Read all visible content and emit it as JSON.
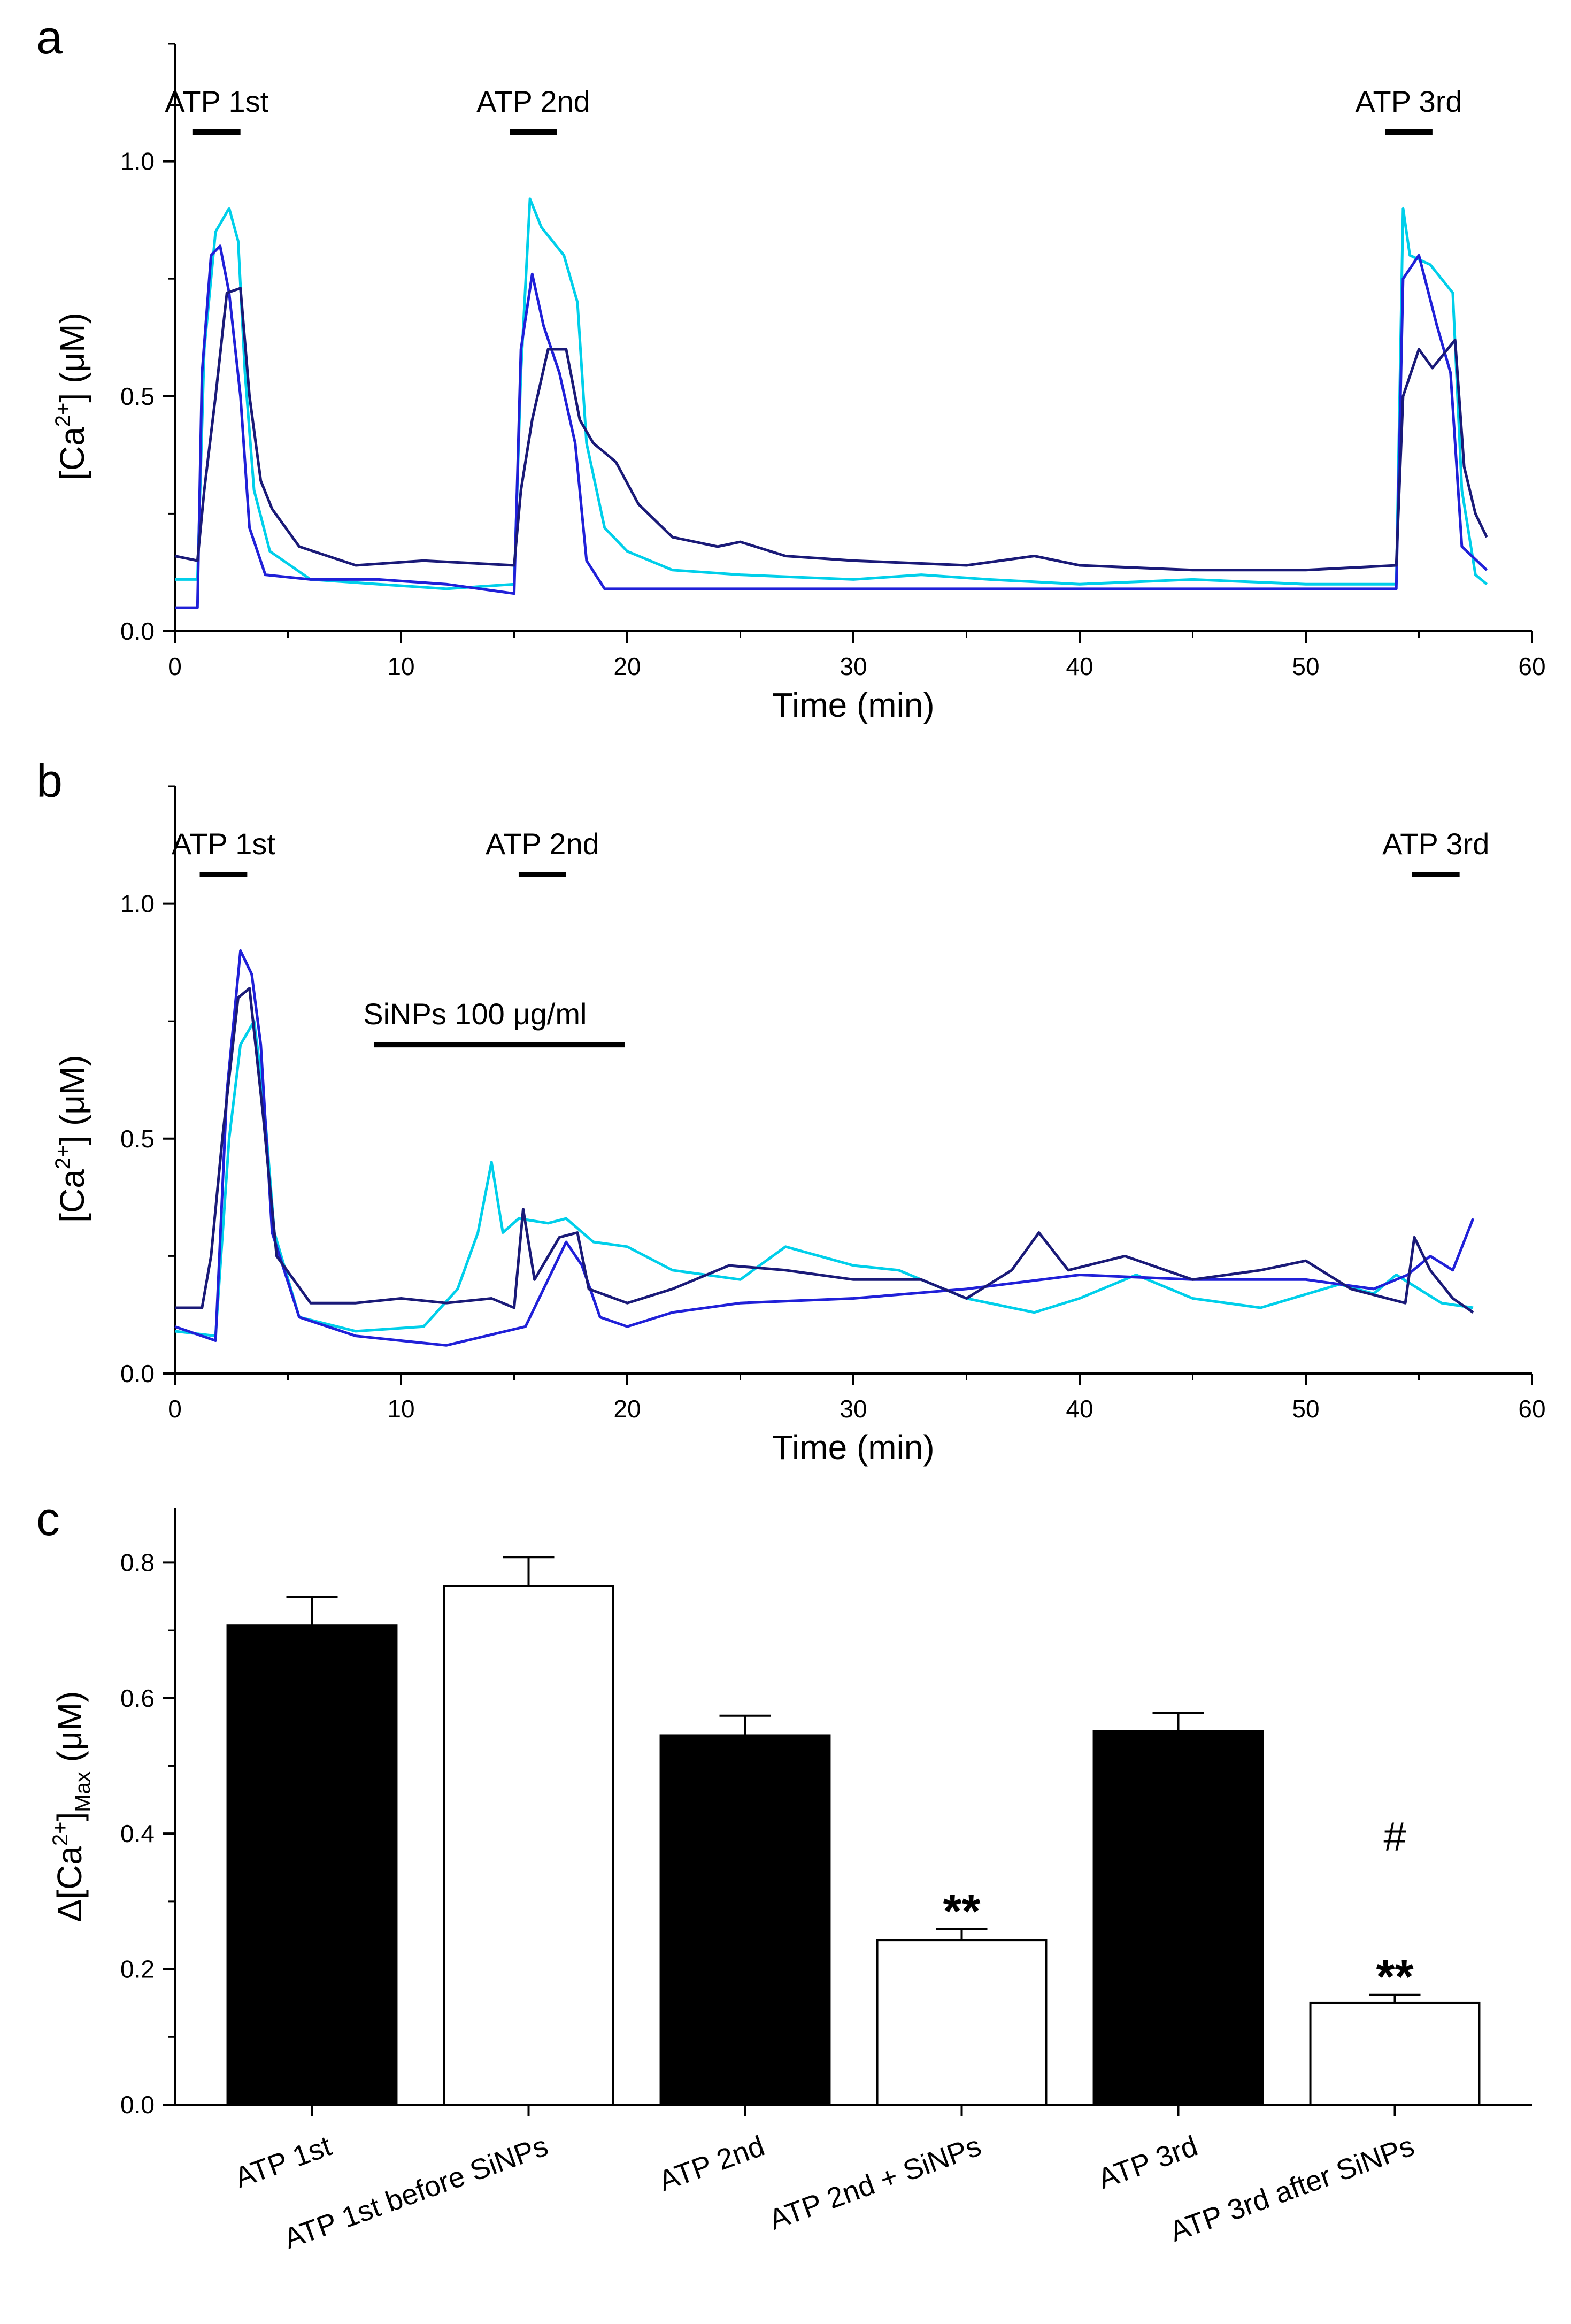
{
  "chart_data": [
    {
      "panel": "a",
      "type": "line",
      "xlabel": "Time (min)",
      "ylabel": {
        "base": "[Ca",
        "sup": "2+",
        "rest": "] (μM)"
      },
      "xlim": [
        0,
        60
      ],
      "ylim": [
        0,
        1.25
      ],
      "xticks": [
        0,
        10,
        20,
        30,
        40,
        50,
        60
      ],
      "yticks": [
        0.0,
        0.5,
        1.0
      ],
      "ytick_labels": [
        "0.0",
        "0.5",
        "1.0"
      ],
      "stim_bars": [
        {
          "label": "ATP 1st",
          "start": 0.8,
          "end": 2.9
        },
        {
          "label": "ATP 2nd",
          "start": 14.8,
          "end": 16.9
        },
        {
          "label": "ATP 3rd",
          "start": 53.5,
          "end": 55.6
        }
      ],
      "series": [
        {
          "color": "#00CFEA",
          "points": [
            [
              0,
              0.11
            ],
            [
              1.0,
              0.11
            ],
            [
              1.3,
              0.6
            ],
            [
              1.8,
              0.85
            ],
            [
              2.4,
              0.9
            ],
            [
              2.8,
              0.83
            ],
            [
              3.1,
              0.55
            ],
            [
              3.5,
              0.3
            ],
            [
              4.2,
              0.17
            ],
            [
              6,
              0.11
            ],
            [
              9,
              0.1
            ],
            [
              12,
              0.09
            ],
            [
              15,
              0.1
            ],
            [
              15.3,
              0.55
            ],
            [
              15.7,
              0.92
            ],
            [
              16.2,
              0.86
            ],
            [
              17.2,
              0.8
            ],
            [
              17.8,
              0.7
            ],
            [
              18.2,
              0.4
            ],
            [
              19,
              0.22
            ],
            [
              20,
              0.17
            ],
            [
              22,
              0.13
            ],
            [
              25,
              0.12
            ],
            [
              30,
              0.11
            ],
            [
              33,
              0.12
            ],
            [
              36,
              0.11
            ],
            [
              40,
              0.1
            ],
            [
              45,
              0.11
            ],
            [
              50,
              0.1
            ],
            [
              54,
              0.1
            ],
            [
              54.3,
              0.9
            ],
            [
              54.6,
              0.8
            ],
            [
              55.5,
              0.78
            ],
            [
              56.5,
              0.72
            ],
            [
              56.9,
              0.3
            ],
            [
              57.5,
              0.12
            ],
            [
              58,
              0.1
            ]
          ]
        },
        {
          "color": "#2020D8",
          "points": [
            [
              0,
              0.05
            ],
            [
              1.0,
              0.05
            ],
            [
              1.2,
              0.55
            ],
            [
              1.6,
              0.8
            ],
            [
              2.0,
              0.82
            ],
            [
              2.4,
              0.72
            ],
            [
              2.9,
              0.5
            ],
            [
              3.3,
              0.22
            ],
            [
              4,
              0.12
            ],
            [
              6,
              0.11
            ],
            [
              9,
              0.11
            ],
            [
              12,
              0.1
            ],
            [
              15,
              0.08
            ],
            [
              15.3,
              0.6
            ],
            [
              15.8,
              0.76
            ],
            [
              16.3,
              0.65
            ],
            [
              17,
              0.55
            ],
            [
              17.7,
              0.4
            ],
            [
              18.2,
              0.15
            ],
            [
              19,
              0.09
            ],
            [
              25,
              0.09
            ],
            [
              30,
              0.09
            ],
            [
              40,
              0.09
            ],
            [
              50,
              0.09
            ],
            [
              54,
              0.09
            ],
            [
              54.3,
              0.75
            ],
            [
              55,
              0.8
            ],
            [
              55.8,
              0.65
            ],
            [
              56.4,
              0.55
            ],
            [
              56.9,
              0.18
            ],
            [
              58,
              0.13
            ]
          ]
        },
        {
          "color": "#1A1A78",
          "points": [
            [
              0,
              0.16
            ],
            [
              1.0,
              0.15
            ],
            [
              1.3,
              0.3
            ],
            [
              1.8,
              0.5
            ],
            [
              2.3,
              0.72
            ],
            [
              2.9,
              0.73
            ],
            [
              3.3,
              0.5
            ],
            [
              3.8,
              0.32
            ],
            [
              4.3,
              0.26
            ],
            [
              5.5,
              0.18
            ],
            [
              8,
              0.14
            ],
            [
              11,
              0.15
            ],
            [
              15,
              0.14
            ],
            [
              15.3,
              0.3
            ],
            [
              15.8,
              0.45
            ],
            [
              16.5,
              0.6
            ],
            [
              17.3,
              0.6
            ],
            [
              17.9,
              0.45
            ],
            [
              18.5,
              0.4
            ],
            [
              19.5,
              0.36
            ],
            [
              20.5,
              0.27
            ],
            [
              22,
              0.2
            ],
            [
              24,
              0.18
            ],
            [
              25,
              0.19
            ],
            [
              27,
              0.16
            ],
            [
              30,
              0.15
            ],
            [
              35,
              0.14
            ],
            [
              38,
              0.16
            ],
            [
              40,
              0.14
            ],
            [
              45,
              0.13
            ],
            [
              50,
              0.13
            ],
            [
              54,
              0.14
            ],
            [
              54.3,
              0.5
            ],
            [
              55,
              0.6
            ],
            [
              55.6,
              0.56
            ],
            [
              56.6,
              0.62
            ],
            [
              57.0,
              0.35
            ],
            [
              57.5,
              0.25
            ],
            [
              58,
              0.2
            ]
          ]
        }
      ]
    },
    {
      "panel": "b",
      "type": "line",
      "xlabel": "Time (min)",
      "ylabel": {
        "base": "[Ca",
        "sup": "2+",
        "rest": "] (μM)"
      },
      "xlim": [
        0,
        60
      ],
      "ylim": [
        0,
        1.25
      ],
      "xticks": [
        0,
        10,
        20,
        30,
        40,
        50,
        60
      ],
      "yticks": [
        0.0,
        0.5,
        1.0
      ],
      "ytick_labels": [
        "0.0",
        "0.5",
        "1.0"
      ],
      "stim_bars": [
        {
          "label": "ATP 1st",
          "start": 1.1,
          "end": 3.2
        },
        {
          "label": "ATP 2nd",
          "start": 15.2,
          "end": 17.3
        },
        {
          "label": "ATP 3rd",
          "start": 54.7,
          "end": 56.8
        }
      ],
      "treatment_bar": {
        "label": "SiNPs 100 μg/ml",
        "start": 8.8,
        "end": 19.9
      },
      "series": [
        {
          "color": "#00CFEA",
          "points": [
            [
              0,
              0.09
            ],
            [
              1.8,
              0.08
            ],
            [
              2.4,
              0.5
            ],
            [
              2.9,
              0.7
            ],
            [
              3.5,
              0.75
            ],
            [
              3.9,
              0.6
            ],
            [
              4.4,
              0.3
            ],
            [
              5.5,
              0.12
            ],
            [
              8,
              0.09
            ],
            [
              11,
              0.1
            ],
            [
              12.5,
              0.18
            ],
            [
              13.4,
              0.3
            ],
            [
              14.0,
              0.45
            ],
            [
              14.5,
              0.3
            ],
            [
              15.2,
              0.33
            ],
            [
              16.5,
              0.32
            ],
            [
              17.3,
              0.33
            ],
            [
              18.5,
              0.28
            ],
            [
              20,
              0.27
            ],
            [
              22,
              0.22
            ],
            [
              25,
              0.2
            ],
            [
              27,
              0.27
            ],
            [
              30,
              0.23
            ],
            [
              32,
              0.22
            ],
            [
              35,
              0.16
            ],
            [
              38,
              0.13
            ],
            [
              40,
              0.16
            ],
            [
              42.5,
              0.21
            ],
            [
              45,
              0.16
            ],
            [
              48,
              0.14
            ],
            [
              51.5,
              0.19
            ],
            [
              53,
              0.17
            ],
            [
              54,
              0.21
            ],
            [
              55,
              0.18
            ],
            [
              56,
              0.15
            ],
            [
              57.4,
              0.14
            ]
          ]
        },
        {
          "color": "#2020D8",
          "points": [
            [
              0,
              0.1
            ],
            [
              1.8,
              0.07
            ],
            [
              2.3,
              0.6
            ],
            [
              2.9,
              0.9
            ],
            [
              3.4,
              0.85
            ],
            [
              3.8,
              0.7
            ],
            [
              4.3,
              0.3
            ],
            [
              5.5,
              0.12
            ],
            [
              8,
              0.08
            ],
            [
              12,
              0.06
            ],
            [
              15.5,
              0.1
            ],
            [
              16.5,
              0.2
            ],
            [
              17.3,
              0.28
            ],
            [
              18,
              0.23
            ],
            [
              18.8,
              0.12
            ],
            [
              20,
              0.1
            ],
            [
              22,
              0.13
            ],
            [
              25,
              0.15
            ],
            [
              30,
              0.16
            ],
            [
              35,
              0.18
            ],
            [
              40,
              0.21
            ],
            [
              45,
              0.2
            ],
            [
              50,
              0.2
            ],
            [
              53,
              0.18
            ],
            [
              54.5,
              0.21
            ],
            [
              55.5,
              0.25
            ],
            [
              56.5,
              0.22
            ],
            [
              57.4,
              0.33
            ]
          ]
        },
        {
          "color": "#1A1A78",
          "points": [
            [
              0,
              0.14
            ],
            [
              1.2,
              0.14
            ],
            [
              1.6,
              0.25
            ],
            [
              2.1,
              0.5
            ],
            [
              2.8,
              0.8
            ],
            [
              3.3,
              0.82
            ],
            [
              3.9,
              0.55
            ],
            [
              4.5,
              0.25
            ],
            [
              6,
              0.15
            ],
            [
              8,
              0.15
            ],
            [
              10,
              0.16
            ],
            [
              12,
              0.15
            ],
            [
              14,
              0.16
            ],
            [
              15.0,
              0.14
            ],
            [
              15.4,
              0.35
            ],
            [
              15.9,
              0.2
            ],
            [
              17.0,
              0.29
            ],
            [
              17.8,
              0.3
            ],
            [
              18.3,
              0.18
            ],
            [
              20,
              0.15
            ],
            [
              22,
              0.18
            ],
            [
              24.5,
              0.23
            ],
            [
              27,
              0.22
            ],
            [
              30,
              0.2
            ],
            [
              33,
              0.2
            ],
            [
              35,
              0.16
            ],
            [
              37,
              0.22
            ],
            [
              38.2,
              0.3
            ],
            [
              39.5,
              0.22
            ],
            [
              42,
              0.25
            ],
            [
              45,
              0.2
            ],
            [
              48,
              0.22
            ],
            [
              50,
              0.24
            ],
            [
              52,
              0.18
            ],
            [
              54.4,
              0.15
            ],
            [
              54.8,
              0.29
            ],
            [
              55.5,
              0.22
            ],
            [
              56.5,
              0.16
            ],
            [
              57.4,
              0.13
            ]
          ]
        }
      ]
    },
    {
      "panel": "c",
      "type": "bar",
      "ylabel": {
        "base": "Δ[Ca",
        "sup": "2+",
        "rest": "]",
        "sub": "Max",
        "unit": " (μM)"
      },
      "ylim": [
        0,
        0.88
      ],
      "yticks": [
        0.0,
        0.2,
        0.4,
        0.6,
        0.8
      ],
      "ytick_labels": [
        "0.0",
        "0.2",
        "0.4",
        "0.6",
        "0.8"
      ],
      "categories": [
        "ATP 1st",
        "ATP 1st before SiNPs",
        "ATP 2nd",
        "ATP 2nd + SiNPs",
        "ATP 3rd",
        "ATP 3rd after SiNPs"
      ],
      "values": [
        0.707,
        0.765,
        0.545,
        0.243,
        0.551,
        0.15
      ],
      "errors": [
        0.042,
        0.043,
        0.029,
        0.016,
        0.027,
        0.012
      ],
      "fills": [
        "#000000",
        "#FFFFFF",
        "#000000",
        "#FFFFFF",
        "#000000",
        "#FFFFFF"
      ],
      "annotations": [
        {
          "category_index": 3,
          "text": "**"
        },
        {
          "category_index": 5,
          "text": "**"
        },
        {
          "category_index": 5,
          "text": "#"
        }
      ]
    }
  ]
}
